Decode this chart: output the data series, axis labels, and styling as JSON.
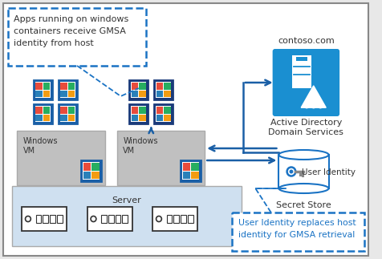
{
  "bg_color": "#e8e8e8",
  "blue": "#1a5fa6",
  "dblue": "#1a73c4",
  "vm_bg": "#c0c0c0",
  "server_bg": "#cfe0f0",
  "ad_bg": "#1a8fd1",
  "white": "#ffffff",
  "callout_text1": "Apps running on windows\ncontainers receive GMSA\nidentity from host",
  "callout_text2": "User Identity replaces host\nidentity for GMSA retrieval",
  "ad_top": "contoso.com",
  "ad_bottom": "Active Directory\nDomain Services",
  "secret_label": "Secret Store",
  "user_id": "User Identity",
  "vm_label": "Windows\nVM",
  "server_label": "Server",
  "win_colors": [
    "#e74c3c",
    "#27ae60",
    "#2980b9",
    "#f39c12"
  ]
}
